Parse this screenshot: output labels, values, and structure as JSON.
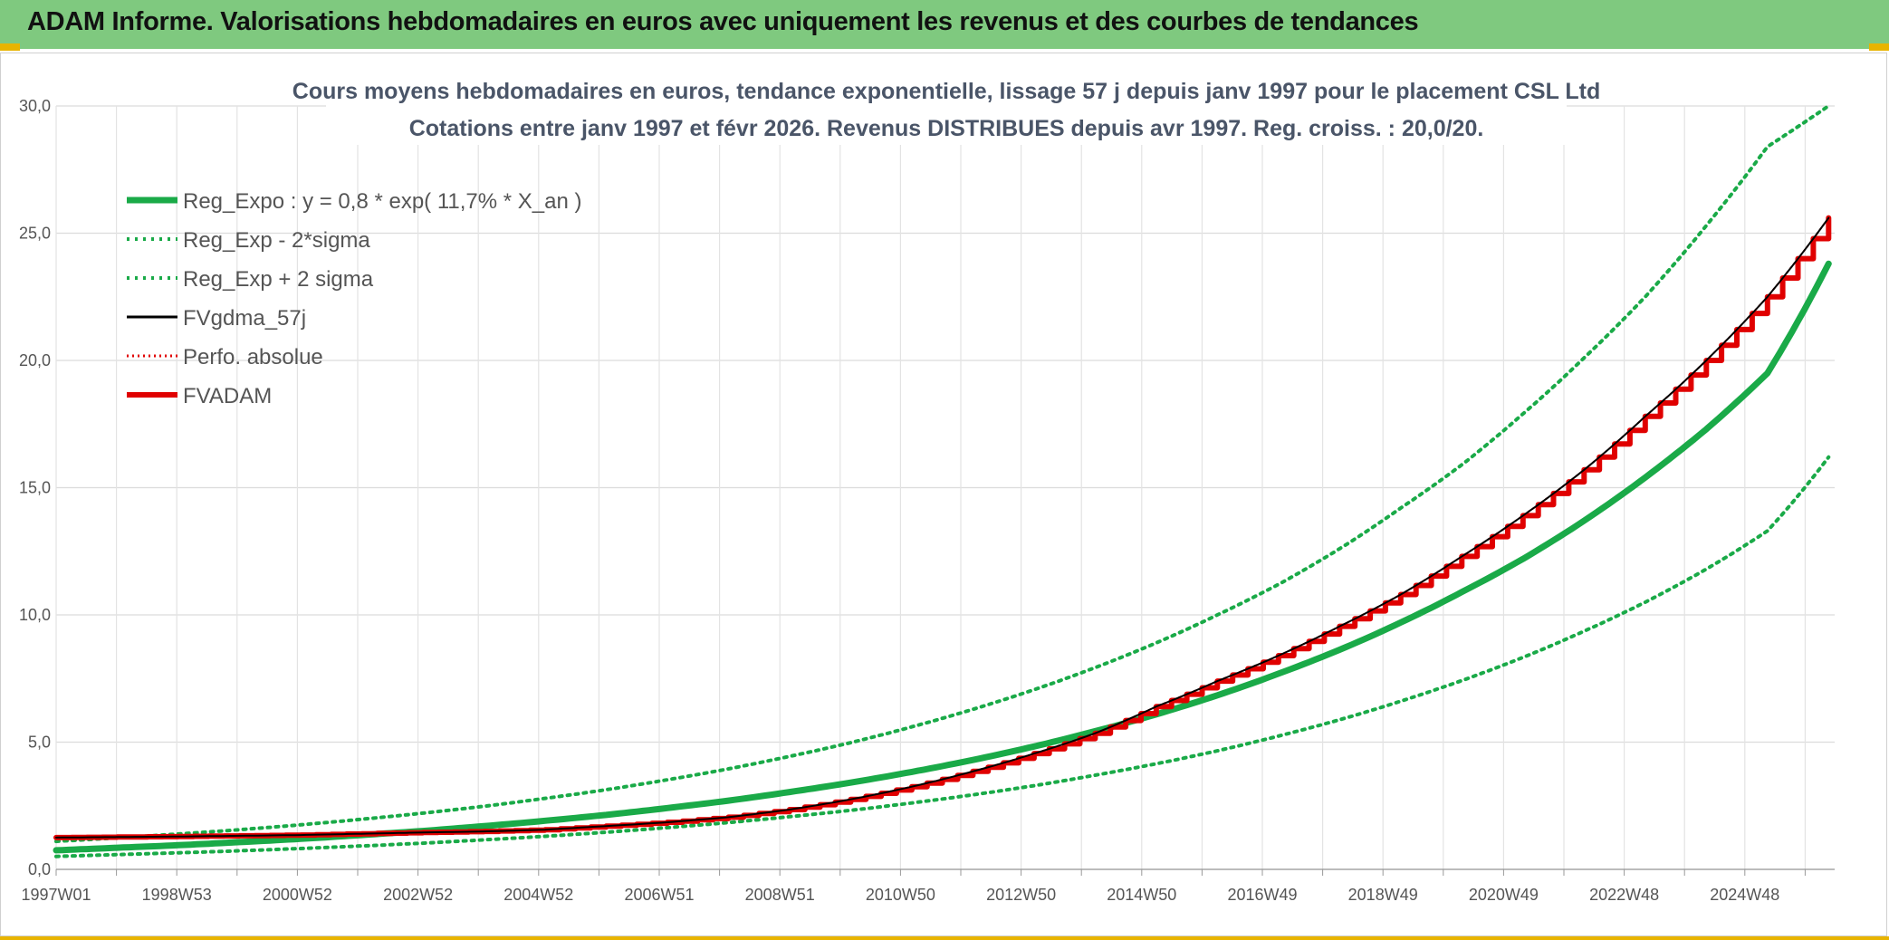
{
  "header": {
    "title": "ADAM Informe. Valorisations hebdomadaires en euros avec uniquement les revenus et des courbes de tendances"
  },
  "colors": {
    "green": "#1aaa48",
    "black": "#000000",
    "red": "#e00000",
    "banner": "#7fc97f",
    "accent": "#e8b400"
  },
  "chart_data": {
    "type": "line",
    "title": "Cours moyens hebdomadaires en euros, tendance exponentielle, lissage 57 j depuis janv 1997 pour le placement CSL Ltd",
    "subtitle": "Cotations entre janv 1997 et févr 2026. Revenus DISTRIBUES depuis avr 1997. Reg. croiss. : 20,0/20.",
    "xlabel": "",
    "ylabel": "",
    "x_tick_labels": [
      "1997W01",
      "1998W53",
      "2000W52",
      "2002W52",
      "2004W52",
      "2006W51",
      "2008W51",
      "2010W50",
      "2012W50",
      "2014W50",
      "2016W49",
      "2018W49",
      "2020W49",
      "2022W48",
      "2024W48"
    ],
    "x_range": [
      1997.0,
      2026.1
    ],
    "y_range": [
      0,
      30
    ],
    "y_tick_labels": [
      "0,0",
      "5,0",
      "10,0",
      "15,0",
      "20,0",
      "25,0",
      "30,0"
    ],
    "grid": true,
    "legend_position": "top-left",
    "x": [
      1997,
      1998,
      1999,
      2000,
      2001,
      2002,
      2003,
      2004,
      2005,
      2006,
      2007,
      2008,
      2009,
      2010,
      2011,
      2012,
      2013,
      2014,
      2015,
      2016,
      2017,
      2018,
      2019,
      2020,
      2021,
      2022,
      2023,
      2024,
      2025,
      2026
    ],
    "series": [
      {
        "name": "Reg_Expo : y = 0,8 * exp( 11,7% *  X_an )",
        "style": "green-solid",
        "values": [
          0.75,
          0.85,
          0.95,
          1.07,
          1.2,
          1.35,
          1.51,
          1.7,
          1.91,
          2.14,
          2.41,
          2.7,
          3.04,
          3.41,
          3.83,
          4.3,
          4.83,
          5.43,
          6.09,
          6.84,
          7.69,
          8.63,
          9.7,
          10.9,
          12.2,
          13.7,
          15.4,
          17.3,
          19.5,
          23.8
        ]
      },
      {
        "name": "Reg_Exp - 2*sigma",
        "style": "green-dotted",
        "values": [
          0.51,
          0.58,
          0.65,
          0.73,
          0.82,
          0.92,
          1.03,
          1.16,
          1.3,
          1.46,
          1.64,
          1.84,
          2.07,
          2.32,
          2.61,
          2.93,
          3.29,
          3.7,
          4.15,
          4.66,
          5.24,
          5.88,
          6.61,
          7.42,
          8.33,
          9.36,
          10.5,
          11.8,
          13.3,
          16.2
        ]
      },
      {
        "name": "Reg_Exp + 2 sigma",
        "style": "green-dotted",
        "values": [
          1.1,
          1.24,
          1.39,
          1.56,
          1.75,
          1.97,
          2.21,
          2.48,
          2.79,
          3.13,
          3.52,
          3.95,
          4.44,
          4.98,
          5.6,
          6.29,
          7.06,
          7.93,
          8.9,
          10.0,
          11.2,
          12.6,
          14.2,
          15.9,
          17.9,
          20.1,
          22.5,
          25.3,
          28.4,
          30.0
        ]
      },
      {
        "name": "FVgdma_57j",
        "style": "black-solid",
        "values": [
          1.25,
          1.27,
          1.29,
          1.32,
          1.35,
          1.4,
          1.45,
          1.49,
          1.56,
          1.7,
          1.85,
          2.05,
          2.35,
          2.75,
          3.25,
          3.85,
          4.55,
          5.35,
          6.4,
          7.4,
          8.4,
          9.55,
          10.8,
          12.3,
          13.9,
          15.7,
          17.8,
          20.0,
          22.5,
          25.6
        ]
      },
      {
        "name": "Perfo. absolue",
        "style": "red-dotted",
        "values": [
          1.25,
          1.27,
          1.29,
          1.32,
          1.35,
          1.4,
          1.45,
          1.49,
          1.56,
          1.7,
          1.85,
          2.05,
          2.35,
          2.75,
          3.25,
          3.85,
          4.55,
          5.35,
          6.4,
          7.4,
          8.4,
          9.55,
          10.8,
          12.3,
          13.9,
          15.7,
          17.8,
          20.0,
          22.5,
          25.6
        ]
      },
      {
        "name": "FVADAM",
        "style": "red-solid",
        "values": [
          1.25,
          1.27,
          1.29,
          1.32,
          1.35,
          1.4,
          1.45,
          1.49,
          1.56,
          1.7,
          1.85,
          2.05,
          2.35,
          2.75,
          3.25,
          3.85,
          4.55,
          5.35,
          6.4,
          7.4,
          8.4,
          9.55,
          10.8,
          12.3,
          13.9,
          15.7,
          17.8,
          20.0,
          22.5,
          25.6
        ]
      }
    ]
  }
}
